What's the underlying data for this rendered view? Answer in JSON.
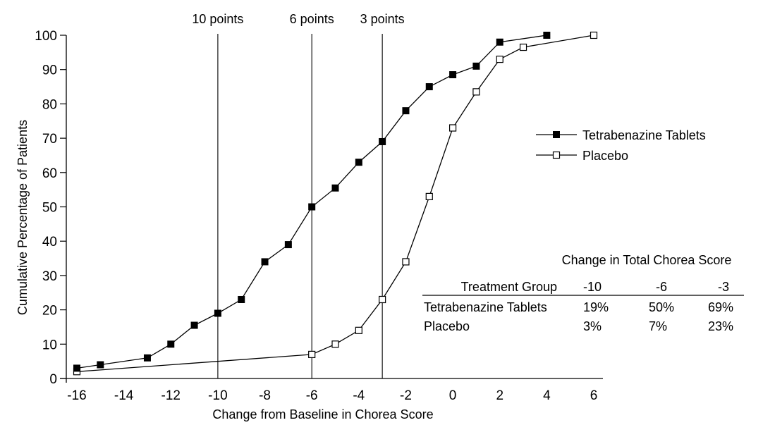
{
  "chart_data": {
    "type": "line",
    "title": "",
    "xlabel": "Change from Baseline in Chorea Score",
    "ylabel": "Cumulative Percentage of Patients",
    "xlim": [
      -16,
      6
    ],
    "ylim": [
      0,
      100
    ],
    "x_ticks": [
      -16,
      -14,
      -12,
      -10,
      -8,
      -6,
      -4,
      -2,
      0,
      2,
      4,
      6
    ],
    "y_ticks": [
      0,
      10,
      20,
      30,
      40,
      50,
      60,
      70,
      80,
      90,
      100
    ],
    "grid": false,
    "legend_position": "right",
    "reference_lines": [
      {
        "x": -10,
        "label": "10 points"
      },
      {
        "x": -6,
        "label": "6 points"
      },
      {
        "x": -3,
        "label": "3 points"
      }
    ],
    "series": [
      {
        "name": "Tetrabenazine Tablets",
        "marker": "filled-square",
        "x": [
          -16,
          -15,
          -13,
          -12,
          -11,
          -10,
          -9,
          -8,
          -7,
          -6,
          -5,
          -4,
          -3,
          -2,
          -1,
          0,
          1,
          2,
          4
        ],
        "values": [
          3,
          4,
          6,
          10,
          15.5,
          19,
          23,
          34,
          39,
          50,
          55.5,
          63,
          69,
          78,
          85,
          88.5,
          91,
          98,
          100
        ]
      },
      {
        "name": "Placebo",
        "marker": "open-square",
        "x": [
          -16,
          -6,
          -5,
          -4,
          -3,
          -2,
          -1,
          0,
          1,
          2,
          3,
          6
        ],
        "values": [
          2,
          7,
          10,
          14,
          23,
          34,
          53,
          73,
          83.5,
          93,
          96.5,
          100
        ]
      }
    ],
    "inset_table": {
      "title": "Change in Total Chorea Score",
      "columns": [
        "Treatment Group",
        "-10",
        "-6",
        "-3"
      ],
      "rows": [
        [
          "Tetrabenazine Tablets",
          "19%",
          "50%",
          "69%"
        ],
        [
          "Placebo",
          "3%",
          "7%",
          "23%"
        ]
      ]
    }
  }
}
